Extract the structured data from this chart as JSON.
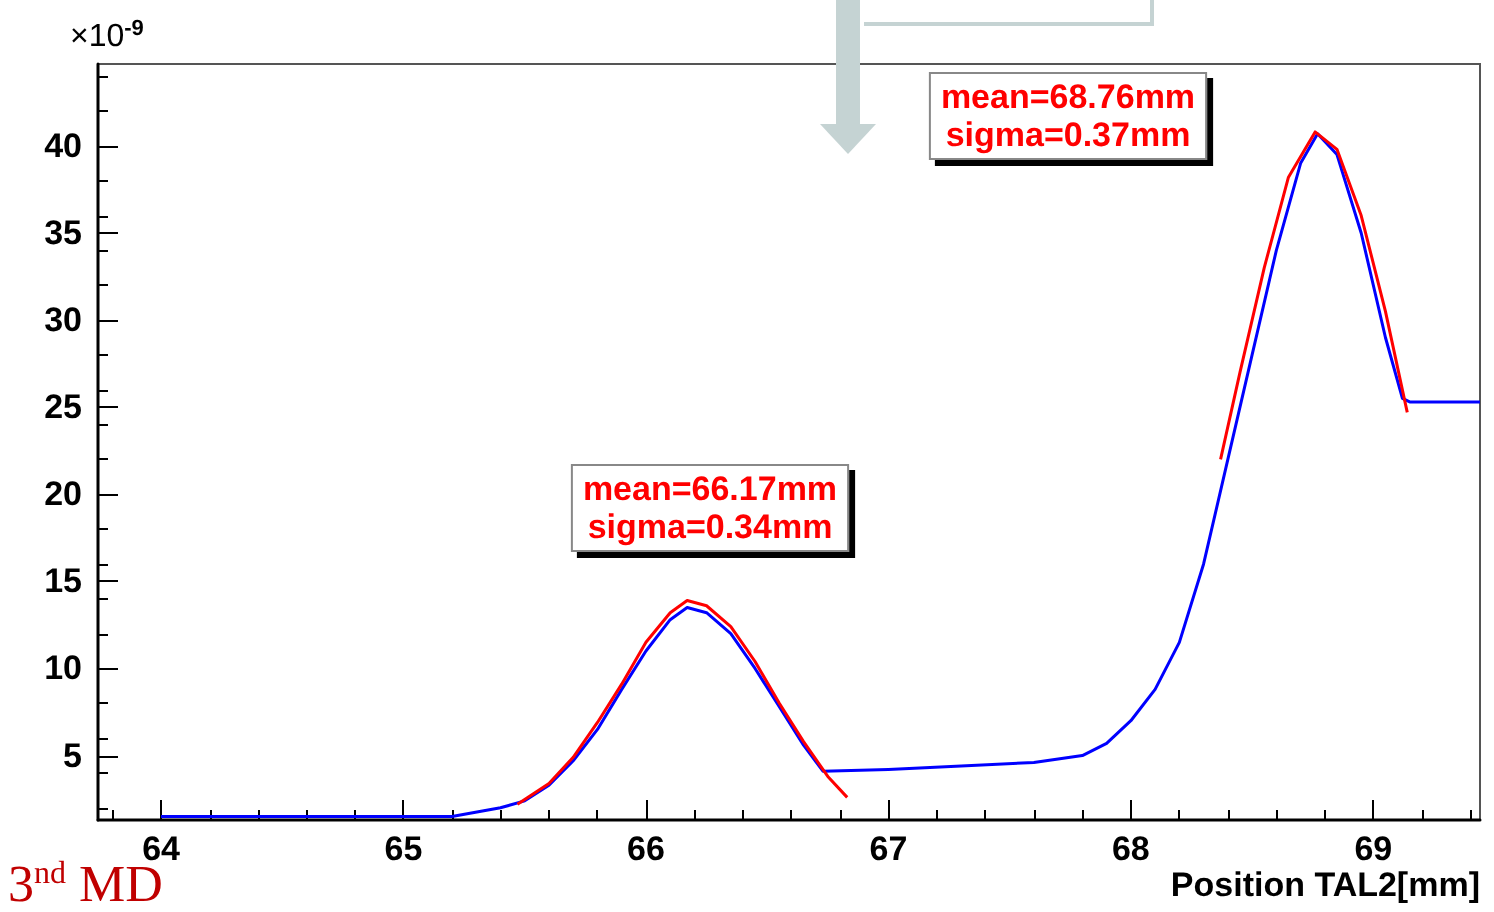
{
  "chart_data": {
    "type": "line",
    "xlabel": "Position TAL2[mm]",
    "ylabel": "×10$^{-9}$",
    "xlim": [
      63.74,
      69.44
    ],
    "xticks": [
      64,
      65,
      66,
      67,
      68,
      69
    ],
    "ylim": [
      1.3,
      44.7
    ],
    "yticks": [
      5,
      10,
      15,
      20,
      25,
      30,
      35,
      40
    ],
    "grid": false,
    "marker": "none",
    "line_style": "solid",
    "series": [
      {
        "color": "#0000ff",
        "x": [
          64.0,
          65.0,
          65.2,
          65.4,
          65.5,
          65.6,
          65.7,
          65.8,
          65.9,
          66.0,
          66.1,
          66.17,
          66.25,
          66.35,
          66.45,
          66.55,
          66.65,
          66.73,
          67.0,
          67.3,
          67.6,
          67.8,
          67.9,
          68.0,
          68.1,
          68.2,
          68.3,
          68.4,
          68.5,
          68.6,
          68.7,
          68.77,
          68.85,
          68.95,
          69.05,
          69.12,
          69.15,
          69.44
        ],
        "values": [
          1.5,
          1.5,
          1.5,
          2.0,
          2.4,
          3.3,
          4.7,
          6.5,
          8.8,
          11.0,
          12.8,
          13.5,
          13.2,
          12.0,
          10.0,
          7.8,
          5.6,
          4.1,
          4.2,
          4.4,
          4.6,
          5.0,
          5.7,
          7.0,
          8.8,
          11.5,
          16,
          22,
          28,
          34,
          39,
          40.7,
          39.5,
          35,
          29,
          25.5,
          25.3,
          25.3
        ]
      },
      {
        "color": "#ff0000",
        "x": [
          65.47,
          65.6,
          65.7,
          65.8,
          65.9,
          66.0,
          66.1,
          66.17,
          66.25,
          66.35,
          66.45,
          66.55,
          66.65,
          66.75,
          66.83
        ],
        "values": [
          2.2,
          3.4,
          4.9,
          6.9,
          9.1,
          11.5,
          13.2,
          13.9,
          13.6,
          12.4,
          10.4,
          8.0,
          5.8,
          3.8,
          2.6
        ]
      },
      {
        "color": "#ff0000",
        "x": [
          68.37,
          68.45,
          68.55,
          68.65,
          68.76,
          68.85,
          68.95,
          69.05,
          69.14
        ],
        "values": [
          22,
          27,
          33,
          38.2,
          40.8,
          39.8,
          36,
          30.5,
          24.7
        ]
      }
    ],
    "annotations": [
      "mean=66.17mm\nsigma=0.34mm",
      "mean=68.76mm\nsigma=0.37mm",
      "3$^{nd}$ MD"
    ]
  }
}
